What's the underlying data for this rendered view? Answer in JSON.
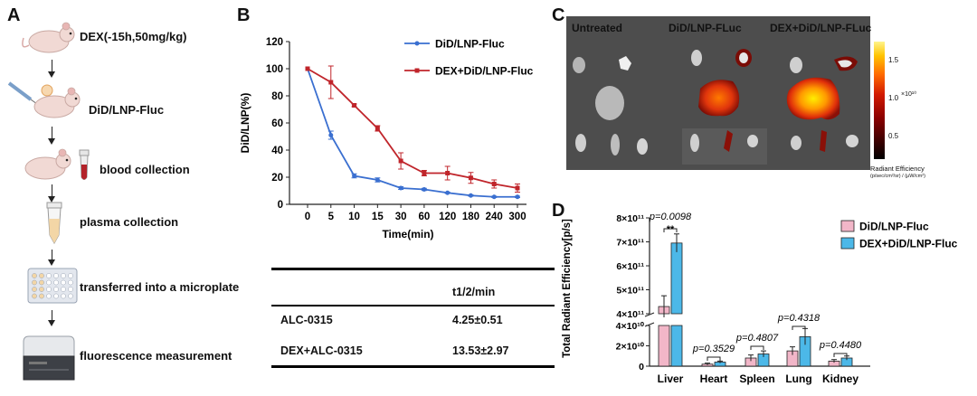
{
  "panel_a": {
    "letter": "A",
    "steps": [
      "DEX(-15h,50mg/kg)",
      "DiD/LNP-Fluc",
      "blood collection",
      "plasma collection",
      "transferred into a microplate",
      "fluorescence measurement"
    ]
  },
  "panel_c": {
    "letter": "C",
    "headers": [
      "Untreated",
      "DiD/LNP-FLuc",
      "DEX+DiD/LNP-FLuc"
    ],
    "colorbar": {
      "ticks": [
        "1.5",
        "1.0",
        "0.5"
      ],
      "exponent": "×10¹⁰",
      "title": "Radiant Efficiency",
      "units": "(p/sec/cm²/sr) / (μW/cm²)"
    },
    "colors": {
      "background": "#555555",
      "hot": "#ff6a00",
      "core": "#ffe600"
    }
  },
  "table": {
    "header": "t1/2/min",
    "rows": [
      {
        "name": "ALC-0315",
        "value": "4.25±0.51"
      },
      {
        "name": "DEX+ALC-0315",
        "value": "13.53±2.97"
      }
    ]
  },
  "chart_data": [
    {
      "panel": "B",
      "type": "line",
      "xlabel": "Time(min)",
      "ylabel": "DiD/LNP(%)",
      "categories": [
        "0",
        "5",
        "10",
        "15",
        "30",
        "60",
        "120",
        "180",
        "240",
        "300"
      ],
      "ylim": [
        0,
        120
      ],
      "yticks": [
        0,
        20,
        40,
        60,
        80,
        100,
        120
      ],
      "legend_position": "top-right",
      "grid": false,
      "series": [
        {
          "name": "DiD/LNP-Fluc",
          "color": "#3a6fd0",
          "values": [
            100,
            51,
            21,
            18,
            12,
            11,
            8.5,
            6.5,
            5.5,
            5.5
          ],
          "errors": [
            0,
            3,
            1.5,
            1.5,
            1,
            0.8,
            0.5,
            0.5,
            0.5,
            0.5
          ]
        },
        {
          "name": "DEX+DiD/LNP-Fluc",
          "color": "#c0252b",
          "values": [
            100,
            90,
            73,
            56,
            32,
            23,
            23,
            19.5,
            15,
            12
          ],
          "errors": [
            0,
            12,
            1,
            2,
            6,
            2,
            5,
            4,
            3,
            3
          ]
        }
      ]
    },
    {
      "panel": "D",
      "type": "bar",
      "ylabel": "Total Radiant Efficiency[p/s]",
      "categories": [
        "Liver",
        "Heart",
        "Spleen",
        "Lung",
        "Kidney"
      ],
      "axis_break": true,
      "upper_yticks": [
        "4×10¹¹",
        "5×10¹¹",
        "6×10¹¹",
        "7×10¹¹",
        "8×10¹¹"
      ],
      "lower_yticks": [
        "0",
        "2×10¹⁰",
        "4×10¹⁰"
      ],
      "legend_position": "top-right",
      "series": [
        {
          "name": "DiD/LNP-Fluc",
          "color": "#f2b6c8",
          "values": [
            430000000000.0,
            2000000000.0,
            8000000000.0,
            15000000000.0,
            5000000000.0
          ],
          "errors": [
            45000000000.0,
            1000000000.0,
            3000000000.0,
            4000000000.0,
            1500000000.0
          ]
        },
        {
          "name": "DEX+DiD/LNP-Fluc",
          "color": "#4cb8e8",
          "values": [
            695000000000.0,
            4000000000.0,
            12000000000.0,
            29000000000.0,
            8000000000.0
          ],
          "errors": [
            38000000000.0,
            1000000000.0,
            3000000000.0,
            8000000000.0,
            2000000000.0
          ]
        }
      ],
      "annotations": [
        "p=0.0098",
        "**",
        "p=0.3529",
        "p=0.4807",
        "p=0.4318",
        "p=0.4480"
      ]
    }
  ]
}
